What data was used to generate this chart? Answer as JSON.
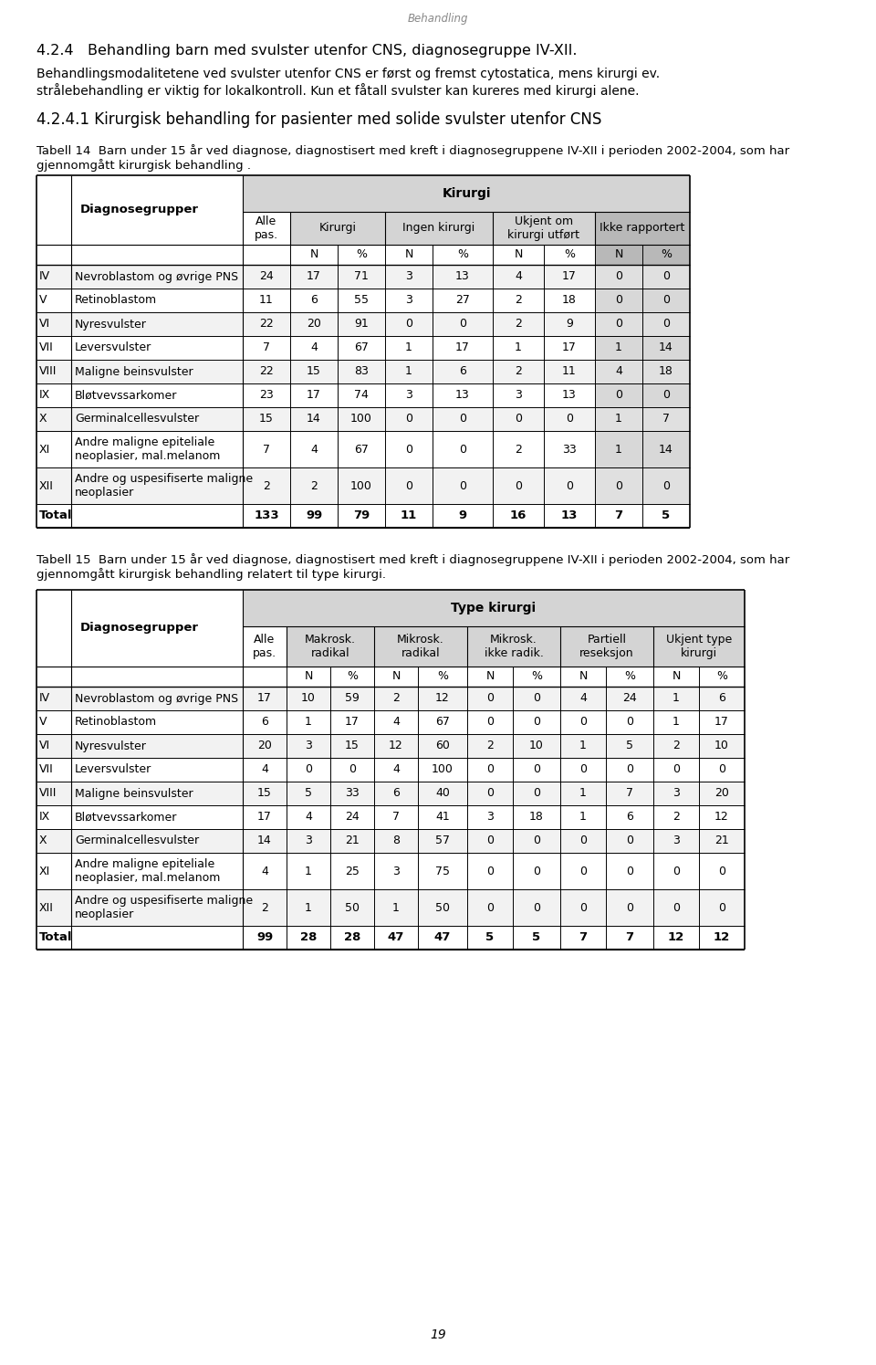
{
  "page_title": "Behandling",
  "section_title": "4.2.4   Behandling barn med svulster utenfor CNS, diagnosegruppe IV-XII.",
  "section_text1": "Behandlingsmodalitetene ved svulster utenfor CNS er først og fremst cytostatica, mens kirurgi ev.",
  "section_text2": "strålebehandling er viktig for lokalkontroll. Kun et fåtall svulster kan kureres med kirurgi alene.",
  "subsection_title": "4.2.4.1 Kirurgisk behandling for pasienter med solide svulster utenfor CNS",
  "table1_caption1": "Tabell 14  Barn under 15 år ved diagnose, diagnostisert med kreft i diagnosegruppene IV-XII i perioden 2002-2004, som har",
  "table1_caption2": "gjennomgått kirurgisk behandling .",
  "table2_caption1": "Tabell 15  Barn under 15 år ved diagnose, diagnostisert med kreft i diagnosegruppene IV-XII i perioden 2002-2004, som har",
  "table2_caption2": "gjennomgått kirurgisk behandling relatert til type kirurgi.",
  "page_number": "19",
  "bg_color": "#ffffff",
  "header_bg": "#d4d4d4",
  "shaded_bg": "#b8b8b8",
  "row_alt_bg": "#f2f2f2",
  "table1_rows": [
    [
      "IV",
      "Nevroblastom og øvrige PNS",
      "24",
      "17",
      "71",
      "3",
      "13",
      "4",
      "17",
      "0",
      "0"
    ],
    [
      "V",
      "Retinoblastom",
      "11",
      "6",
      "55",
      "3",
      "27",
      "2",
      "18",
      "0",
      "0"
    ],
    [
      "VI",
      "Nyresvulster",
      "22",
      "20",
      "91",
      "0",
      "0",
      "2",
      "9",
      "0",
      "0"
    ],
    [
      "VII",
      "Leversvulster",
      "7",
      "4",
      "67",
      "1",
      "17",
      "1",
      "17",
      "1",
      "14"
    ],
    [
      "VIII",
      "Maligne beinsvulster",
      "22",
      "15",
      "83",
      "1",
      "6",
      "2",
      "11",
      "4",
      "18"
    ],
    [
      "IX",
      "Bløtvevssarkomer",
      "23",
      "17",
      "74",
      "3",
      "13",
      "3",
      "13",
      "0",
      "0"
    ],
    [
      "X",
      "Germinalcellesvulster",
      "15",
      "14",
      "100",
      "0",
      "0",
      "0",
      "0",
      "1",
      "7"
    ],
    [
      "XI",
      "Andre maligne epiteliale\nneoplasier, mal.melanom",
      "7",
      "4",
      "67",
      "0",
      "0",
      "2",
      "33",
      "1",
      "14"
    ],
    [
      "XII",
      "Andre og uspesifiserte maligne\nneoplasier",
      "2",
      "2",
      "100",
      "0",
      "0",
      "0",
      "0",
      "0",
      "0"
    ]
  ],
  "table1_total": [
    "133",
    "99",
    "79",
    "11",
    "9",
    "16",
    "13",
    "7",
    "5"
  ],
  "table2_rows": [
    [
      "IV",
      "Nevroblastom og øvrige PNS",
      "17",
      "10",
      "59",
      "2",
      "12",
      "0",
      "0",
      "4",
      "24",
      "1",
      "6"
    ],
    [
      "V",
      "Retinoblastom",
      "6",
      "1",
      "17",
      "4",
      "67",
      "0",
      "0",
      "0",
      "0",
      "1",
      "17"
    ],
    [
      "VI",
      "Nyresvulster",
      "20",
      "3",
      "15",
      "12",
      "60",
      "2",
      "10",
      "1",
      "5",
      "2",
      "10"
    ],
    [
      "VII",
      "Leversvulster",
      "4",
      "0",
      "0",
      "4",
      "100",
      "0",
      "0",
      "0",
      "0",
      "0",
      "0"
    ],
    [
      "VIII",
      "Maligne beinsvulster",
      "15",
      "5",
      "33",
      "6",
      "40",
      "0",
      "0",
      "1",
      "7",
      "3",
      "20"
    ],
    [
      "IX",
      "Bløtvevssarkomer",
      "17",
      "4",
      "24",
      "7",
      "41",
      "3",
      "18",
      "1",
      "6",
      "2",
      "12"
    ],
    [
      "X",
      "Germinalcellesvulster",
      "14",
      "3",
      "21",
      "8",
      "57",
      "0",
      "0",
      "0",
      "0",
      "3",
      "21"
    ],
    [
      "XI",
      "Andre maligne epiteliale\nneoplasier, mal.melanom",
      "4",
      "1",
      "25",
      "3",
      "75",
      "0",
      "0",
      "0",
      "0",
      "0",
      "0"
    ],
    [
      "XII",
      "Andre og uspesifiserte maligne\nneoplasier",
      "2",
      "1",
      "50",
      "1",
      "50",
      "0",
      "0",
      "0",
      "0",
      "0",
      "0"
    ]
  ],
  "table2_total": [
    "99",
    "28",
    "28",
    "47",
    "47",
    "5",
    "5",
    "7",
    "7",
    "12",
    "12"
  ]
}
